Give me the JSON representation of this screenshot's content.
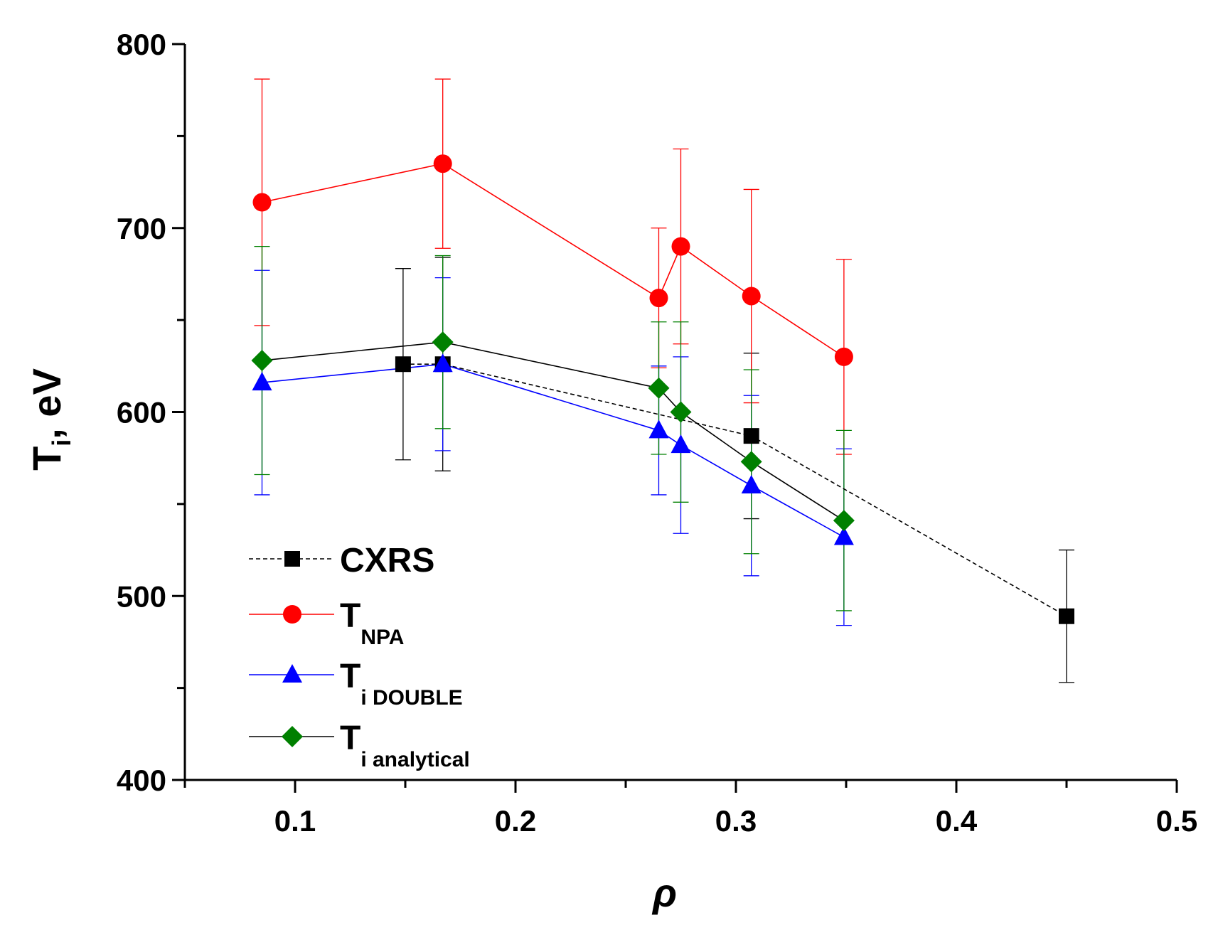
{
  "chart_data": {
    "type": "line",
    "title": "",
    "xlabel": "ρ",
    "ylabel_main": "T",
    "ylabel_sub": "i",
    "ylabel_rest": ", eV",
    "xlim": [
      0.05,
      0.5
    ],
    "ylim": [
      400,
      800
    ],
    "x_major_ticks": [
      0.1,
      0.2,
      0.3,
      0.4,
      0.5
    ],
    "x_tick_labels": [
      "0.1",
      "0.2",
      "0.3",
      "0.4",
      "0.5"
    ],
    "x_minor_ticks": [
      0.05,
      0.15,
      0.25,
      0.35,
      0.45
    ],
    "y_major_ticks": [
      400,
      500,
      600,
      700,
      800
    ],
    "y_tick_labels": [
      "400",
      "500",
      "600",
      "700",
      "800"
    ],
    "y_minor_ticks": [
      450,
      550,
      650,
      750
    ],
    "grid": false,
    "legend_position": "bottom-left",
    "series": [
      {
        "name": "CXRS",
        "legend_main": "CXRS",
        "legend_sub": "",
        "color": "#000000",
        "marker": "square",
        "line_style": "dashed",
        "x": [
          0.149,
          0.167,
          0.307,
          0.45
        ],
        "y": [
          626,
          626,
          587,
          489
        ],
        "err": [
          52,
          58,
          45,
          36
        ]
      },
      {
        "name": "T NPA",
        "legend_main": "T",
        "legend_sub": "NPA",
        "color": "#ff0000",
        "marker": "circle",
        "line_style": "solid",
        "x": [
          0.085,
          0.167,
          0.265,
          0.275,
          0.307,
          0.349
        ],
        "y": [
          714,
          735,
          662,
          690,
          663,
          630
        ],
        "err": [
          67,
          46,
          38,
          53,
          58,
          53
        ]
      },
      {
        "name": "T i DOUBLE",
        "legend_main": "T",
        "legend_sub": "i DOUBLE",
        "color": "#0000ff",
        "marker": "triangle",
        "line_style": "solid",
        "x": [
          0.085,
          0.167,
          0.265,
          0.275,
          0.307,
          0.349
        ],
        "y": [
          616,
          626,
          590,
          582,
          560,
          532
        ],
        "err": [
          61,
          47,
          35,
          48,
          49,
          48
        ]
      },
      {
        "name": "T i analytical",
        "legend_main": "T",
        "legend_sub": "i analytical",
        "color": "#008000",
        "marker": "diamond",
        "line_style": "solid",
        "line_color": "#000000",
        "x": [
          0.085,
          0.167,
          0.265,
          0.275,
          0.307,
          0.349
        ],
        "y": [
          628,
          638,
          613,
          600,
          573,
          541
        ],
        "err": [
          62,
          47,
          36,
          49,
          50,
          49
        ]
      }
    ]
  }
}
